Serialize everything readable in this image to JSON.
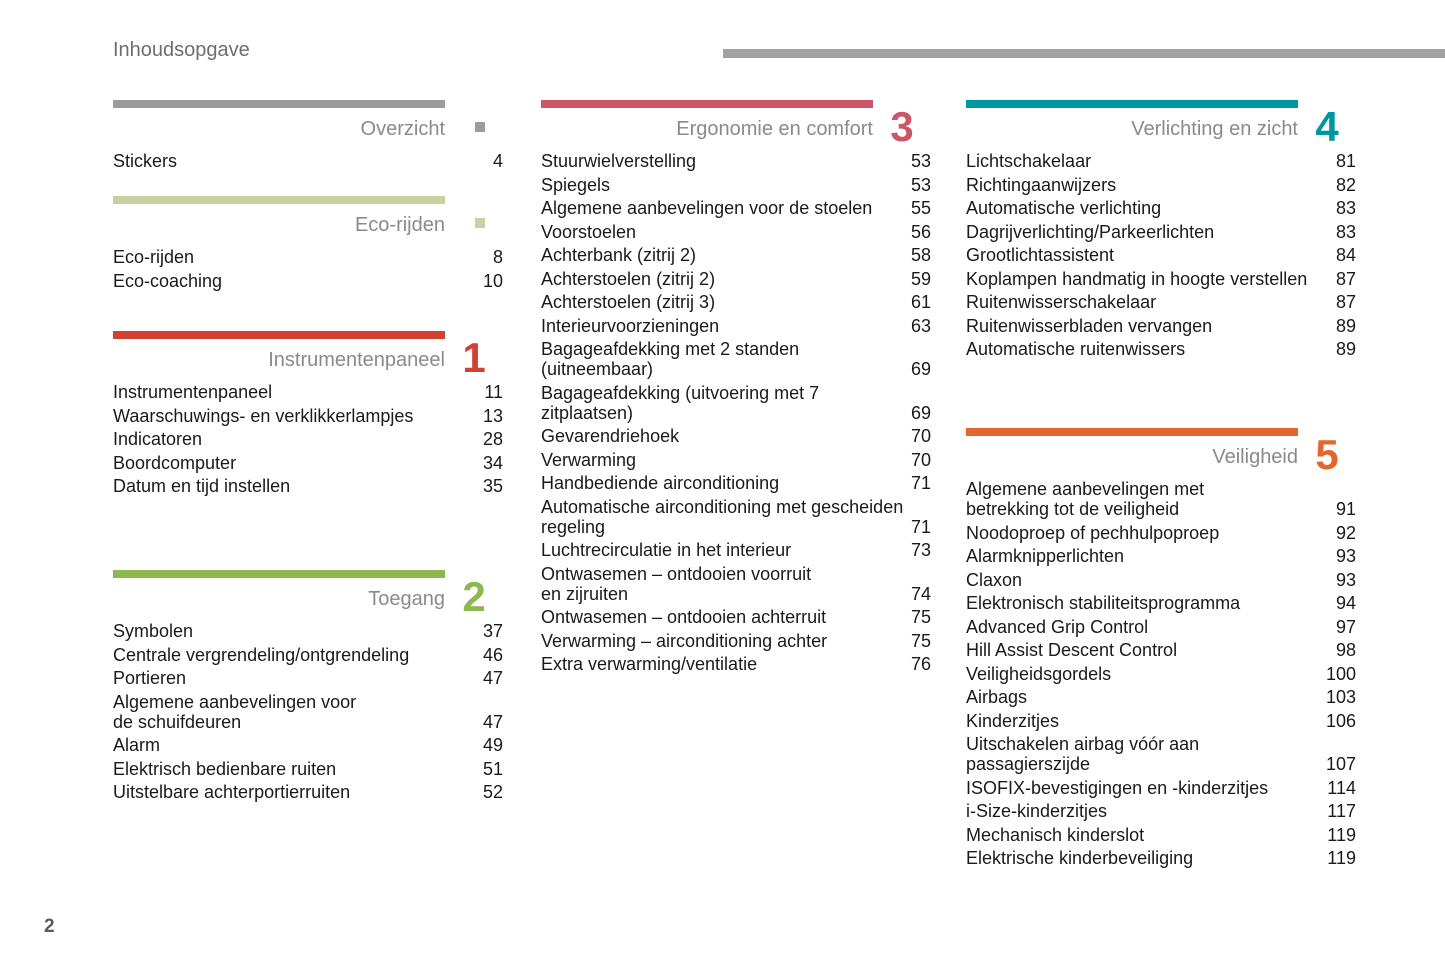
{
  "header": {
    "title": "Inhoudsopgave"
  },
  "footer": {
    "page_number": "2"
  },
  "colors": {
    "header_rule": "#a2a2a2",
    "section_title_text": "#8a8a8a",
    "entry_text": "#1a1a1a"
  },
  "columns": [
    {
      "sections": [
        {
          "id": "overzicht",
          "title": "Overzicht",
          "color": "#9c9c9c",
          "marker": "square",
          "entries": [
            {
              "label": "Stickers",
              "page": "4"
            }
          ]
        },
        {
          "id": "eco-rijden",
          "title": "Eco-rijden",
          "color": "#cbd0a0",
          "marker": "square",
          "entries": [
            {
              "label": "Eco-rijden",
              "page": "8"
            },
            {
              "label": "Eco-coaching",
              "page": "10"
            }
          ]
        },
        {
          "id": "instrumentenpaneel",
          "title": "Instrumentenpaneel",
          "color": "#d23f33",
          "number": "1",
          "entries": [
            {
              "label": "Instrumentenpaneel",
              "page": "11"
            },
            {
              "label": "Waarschuwings- en verklikkerlampjes",
              "page": "13"
            },
            {
              "label": "Indicatoren",
              "page": "28"
            },
            {
              "label": "Boordcomputer",
              "page": "34"
            },
            {
              "label": "Datum en tijd instellen",
              "page": "35"
            }
          ]
        },
        {
          "id": "toegang",
          "title": "Toegang",
          "color": "#8db84e",
          "number": "2",
          "entries": [
            {
              "label": "Symbolen",
              "page": "37"
            },
            {
              "label": "Centrale vergrendeling/ontgrendeling",
              "page": "46"
            },
            {
              "label": "Portieren",
              "page": "47"
            },
            {
              "label": "Algemene aanbevelingen voor\nde schuifdeuren",
              "page": "47"
            },
            {
              "label": "Alarm",
              "page": "49"
            },
            {
              "label": "Elektrisch bedienbare ruiten",
              "page": "51"
            },
            {
              "label": "Uitstelbare achterportierruiten",
              "page": "52"
            }
          ]
        }
      ]
    },
    {
      "sections": [
        {
          "id": "ergonomie-en-comfort",
          "title": "Ergonomie en comfort",
          "color": "#cc5568",
          "number": "3",
          "entries": [
            {
              "label": "Stuurwielverstelling",
              "page": "53"
            },
            {
              "label": "Spiegels",
              "page": "53"
            },
            {
              "label": "Algemene aanbevelingen voor de stoelen",
              "page": "55"
            },
            {
              "label": "Voorstoelen",
              "page": "56"
            },
            {
              "label": "Achterbank (zitrij 2)",
              "page": "58"
            },
            {
              "label": "Achterstoelen (zitrij 2)",
              "page": "59"
            },
            {
              "label": "Achterstoelen (zitrij 3)",
              "page": "61"
            },
            {
              "label": "Interieurvoorzieningen",
              "page": "63"
            },
            {
              "label": "Bagageafdekking met 2 standen\n(uitneembaar)",
              "page": "69"
            },
            {
              "label": "Bagageafdekking (uitvoering met 7\nzitplaatsen)",
              "page": "69"
            },
            {
              "label": "Gevarendriehoek",
              "page": "70"
            },
            {
              "label": "Verwarming",
              "page": "70"
            },
            {
              "label": "Handbediende airconditioning",
              "page": "71"
            },
            {
              "label": "Automatische airconditioning met gescheiden\nregeling",
              "page": "71"
            },
            {
              "label": "Luchtrecirculatie in het interieur",
              "page": "73"
            },
            {
              "label": "Ontwasemen – ontdooien voorruit\nen zijruiten",
              "page": "74"
            },
            {
              "label": "Ontwasemen – ontdooien achterruit",
              "page": "75"
            },
            {
              "label": "Verwarming – airconditioning achter",
              "page": "75"
            },
            {
              "label": "Extra verwarming/ventilatie",
              "page": "76"
            }
          ]
        }
      ]
    },
    {
      "sections": [
        {
          "id": "verlichting-en-zicht",
          "title": "Verlichting en zicht",
          "color": "#00969f",
          "number": "4",
          "entries": [
            {
              "label": "Lichtschakelaar",
              "page": "81"
            },
            {
              "label": "Richtingaanwijzers",
              "page": "82"
            },
            {
              "label": "Automatische verlichting",
              "page": "83"
            },
            {
              "label": "Dagrijverlichting/Parkeerlichten",
              "page": "83"
            },
            {
              "label": "Grootlichtassistent",
              "page": "84"
            },
            {
              "label": "Koplampen handmatig in hoogte verstellen",
              "page": "87"
            },
            {
              "label": "Ruitenwisserschakelaar",
              "page": "87"
            },
            {
              "label": "Ruitenwisserbladen vervangen",
              "page": "89"
            },
            {
              "label": "Automatische ruitenwissers",
              "page": "89"
            }
          ]
        },
        {
          "id": "veiligheid",
          "title": "Veiligheid",
          "color": "#e2672e",
          "number": "5",
          "entries": [
            {
              "label": "Algemene aanbevelingen met\nbetrekking tot de veiligheid",
              "page": "91"
            },
            {
              "label": "Noodoproep of pechhulpoproep",
              "page": "92"
            },
            {
              "label": "Alarmknipperlichten",
              "page": "93"
            },
            {
              "label": "Claxon",
              "page": "93"
            },
            {
              "label": "Elektronisch stabiliteitsprogramma",
              "page": "94"
            },
            {
              "label": "Advanced Grip Control",
              "page": "97"
            },
            {
              "label": "Hill Assist Descent Control",
              "page": "98"
            },
            {
              "label": "Veiligheidsgordels",
              "page": "100"
            },
            {
              "label": "Airbags",
              "page": "103"
            },
            {
              "label": "Kinderzitjes",
              "page": "106"
            },
            {
              "label": "Uitschakelen airbag vóór aan\npassagierszijde",
              "page": "107"
            },
            {
              "label": "ISOFIX-bevestigingen en -kinderzitjes",
              "page": "114"
            },
            {
              "label": "i-Size-kinderzitjes",
              "page": "117"
            },
            {
              "label": "Mechanisch kinderslot",
              "page": "119"
            },
            {
              "label": "Elektrische kinderbeveiliging",
              "page": "119"
            }
          ]
        }
      ]
    }
  ]
}
